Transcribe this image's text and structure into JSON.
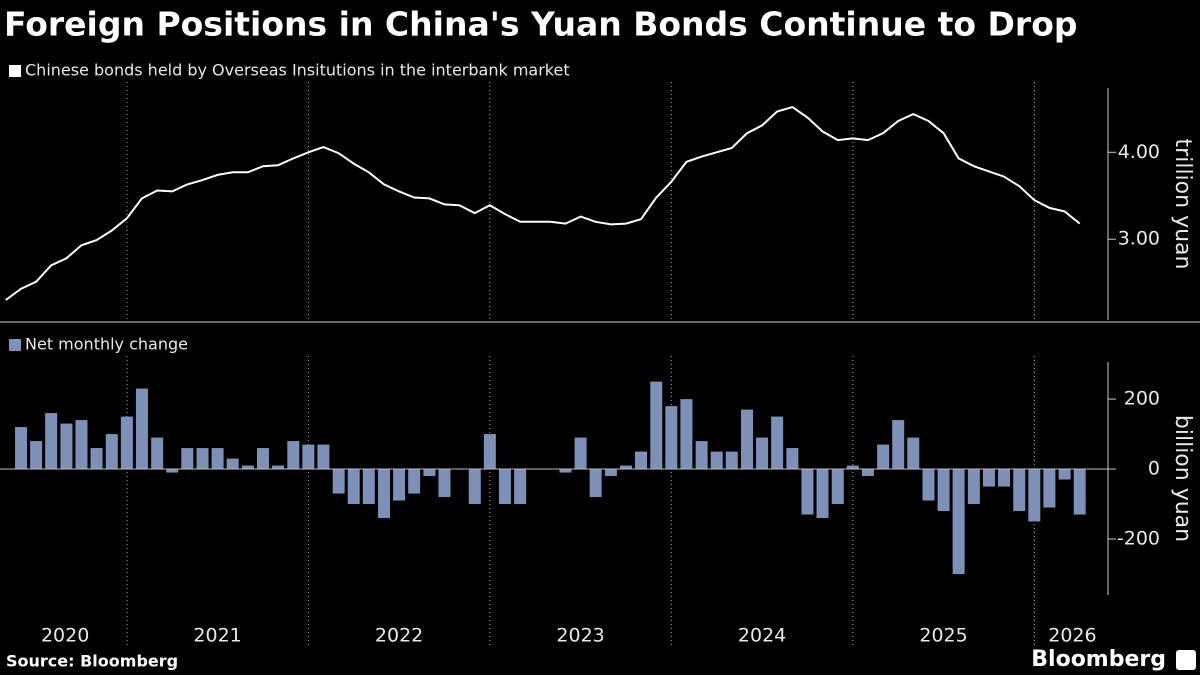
{
  "title": "Foreign Positions in China's Yuan Bonds Continue to Drop",
  "source": "Source: Bloomberg",
  "logo": "Bloomberg",
  "chart_data": [
    {
      "type": "line",
      "x": [
        2020.333,
        2020.417,
        2020.5,
        2020.583,
        2020.667,
        2020.75,
        2020.833,
        2020.917,
        2021,
        2021.083,
        2021.167,
        2021.25,
        2021.333,
        2021.417,
        2021.5,
        2021.583,
        2021.667,
        2021.75,
        2021.833,
        2021.917,
        2022,
        2022.083,
        2022.167,
        2022.25,
        2022.333,
        2022.417,
        2022.5,
        2022.583,
        2022.667,
        2022.75,
        2022.833,
        2022.917,
        2023,
        2023.083,
        2023.167,
        2023.25,
        2023.333,
        2023.417,
        2023.5,
        2023.583,
        2023.667,
        2023.75,
        2023.833,
        2023.917,
        2024,
        2024.083,
        2024.167,
        2024.25,
        2024.333,
        2024.417,
        2024.5,
        2024.583,
        2024.667,
        2024.75,
        2024.833,
        2024.917,
        2025,
        2025.083,
        2025.167,
        2025.25,
        2025.333,
        2025.417,
        2025.5,
        2025.583,
        2025.667,
        2025.75,
        2025.833,
        2025.917,
        2026,
        2026.083,
        2026.167,
        2026.25
      ],
      "series": [
        {
          "name": "Chinese bonds held by Overseas Insitutions in the interbank market",
          "color": "#ffffff",
          "values": [
            2.3,
            2.43,
            2.51,
            2.7,
            2.78,
            2.93,
            2.99,
            3.1,
            3.24,
            3.47,
            3.56,
            3.55,
            3.63,
            3.68,
            3.74,
            3.77,
            3.77,
            3.84,
            3.85,
            3.93,
            4.0,
            4.06,
            3.99,
            3.87,
            3.77,
            3.63,
            3.55,
            3.48,
            3.47,
            3.4,
            3.39,
            3.3,
            3.39,
            3.29,
            3.2,
            3.2,
            3.2,
            3.18,
            3.26,
            3.2,
            3.17,
            3.18,
            3.23,
            3.48,
            3.66,
            3.89,
            3.95,
            4.0,
            4.05,
            4.22,
            4.31,
            4.47,
            4.52,
            4.4,
            4.24,
            4.14,
            4.16,
            4.14,
            4.22,
            4.36,
            4.44,
            4.36,
            4.22,
            3.93,
            3.84,
            3.78,
            3.72,
            3.61,
            3.45,
            3.36,
            3.32,
            3.18
          ]
        }
      ],
      "xlim": [
        2020.301,
        2026.406
      ],
      "ylim": [
        2.07,
        4.74
      ],
      "yticks": [
        {
          "value": 3,
          "label": "3.00"
        },
        {
          "value": 4,
          "label": "4.00"
        }
      ],
      "y_label": "trillion yuan"
    },
    {
      "type": "bar",
      "x": [
        2020.417,
        2020.5,
        2020.583,
        2020.667,
        2020.75,
        2020.833,
        2020.917,
        2021,
        2021.083,
        2021.167,
        2021.25,
        2021.333,
        2021.417,
        2021.5,
        2021.583,
        2021.667,
        2021.75,
        2021.833,
        2021.917,
        2022,
        2022.083,
        2022.167,
        2022.25,
        2022.333,
        2022.417,
        2022.5,
        2022.583,
        2022.667,
        2022.75,
        2022.833,
        2022.917,
        2023,
        2023.083,
        2023.167,
        2023.25,
        2023.333,
        2023.417,
        2023.5,
        2023.583,
        2023.667,
        2023.75,
        2023.833,
        2023.917,
        2024,
        2024.083,
        2024.167,
        2024.25,
        2024.333,
        2024.417,
        2024.5,
        2024.583,
        2024.667,
        2024.75,
        2024.833,
        2024.917,
        2025,
        2025.083,
        2025.167,
        2025.25,
        2025.333,
        2025.417,
        2025.5,
        2025.583,
        2025.667,
        2025.75,
        2025.833,
        2025.917,
        2026,
        2026.083,
        2026.167,
        2026.25
      ],
      "series": [
        {
          "name": "Net monthly change",
          "color": "#7d90b8",
          "values": [
            120,
            80,
            160,
            130,
            140,
            60,
            100,
            150,
            230,
            90,
            -10,
            60,
            60,
            60,
            30,
            10,
            60,
            10,
            80,
            70,
            70,
            -70,
            -100,
            -100,
            -140,
            -90,
            -70,
            -20,
            -80,
            0,
            -100,
            100,
            -100,
            -100,
            0,
            0,
            -10,
            90,
            -80,
            -20,
            10,
            50,
            250,
            180,
            200,
            80,
            50,
            50,
            170,
            90,
            150,
            60,
            -130,
            -140,
            -100,
            10,
            -20,
            70,
            140,
            90,
            -90,
            -120,
            -300,
            -100,
            -50,
            -50,
            -120,
            -150,
            -110,
            -30,
            -130
          ]
        }
      ],
      "xlim": [
        2020.301,
        2026.406
      ],
      "xticks": [
        {
          "value": 2020.66,
          "label": "2020"
        },
        {
          "value": 2021.5,
          "label": "2021"
        },
        {
          "value": 2022.5,
          "label": "2022"
        },
        {
          "value": 2023.5,
          "label": "2023"
        },
        {
          "value": 2024.5,
          "label": "2024"
        },
        {
          "value": 2025.5,
          "label": "2025"
        },
        {
          "value": 2026.21,
          "label": "2026"
        }
      ],
      "ylim": [
        -360,
        306
      ],
      "yticks": [
        -200,
        0,
        200
      ],
      "y_label": "billion yuan"
    }
  ]
}
